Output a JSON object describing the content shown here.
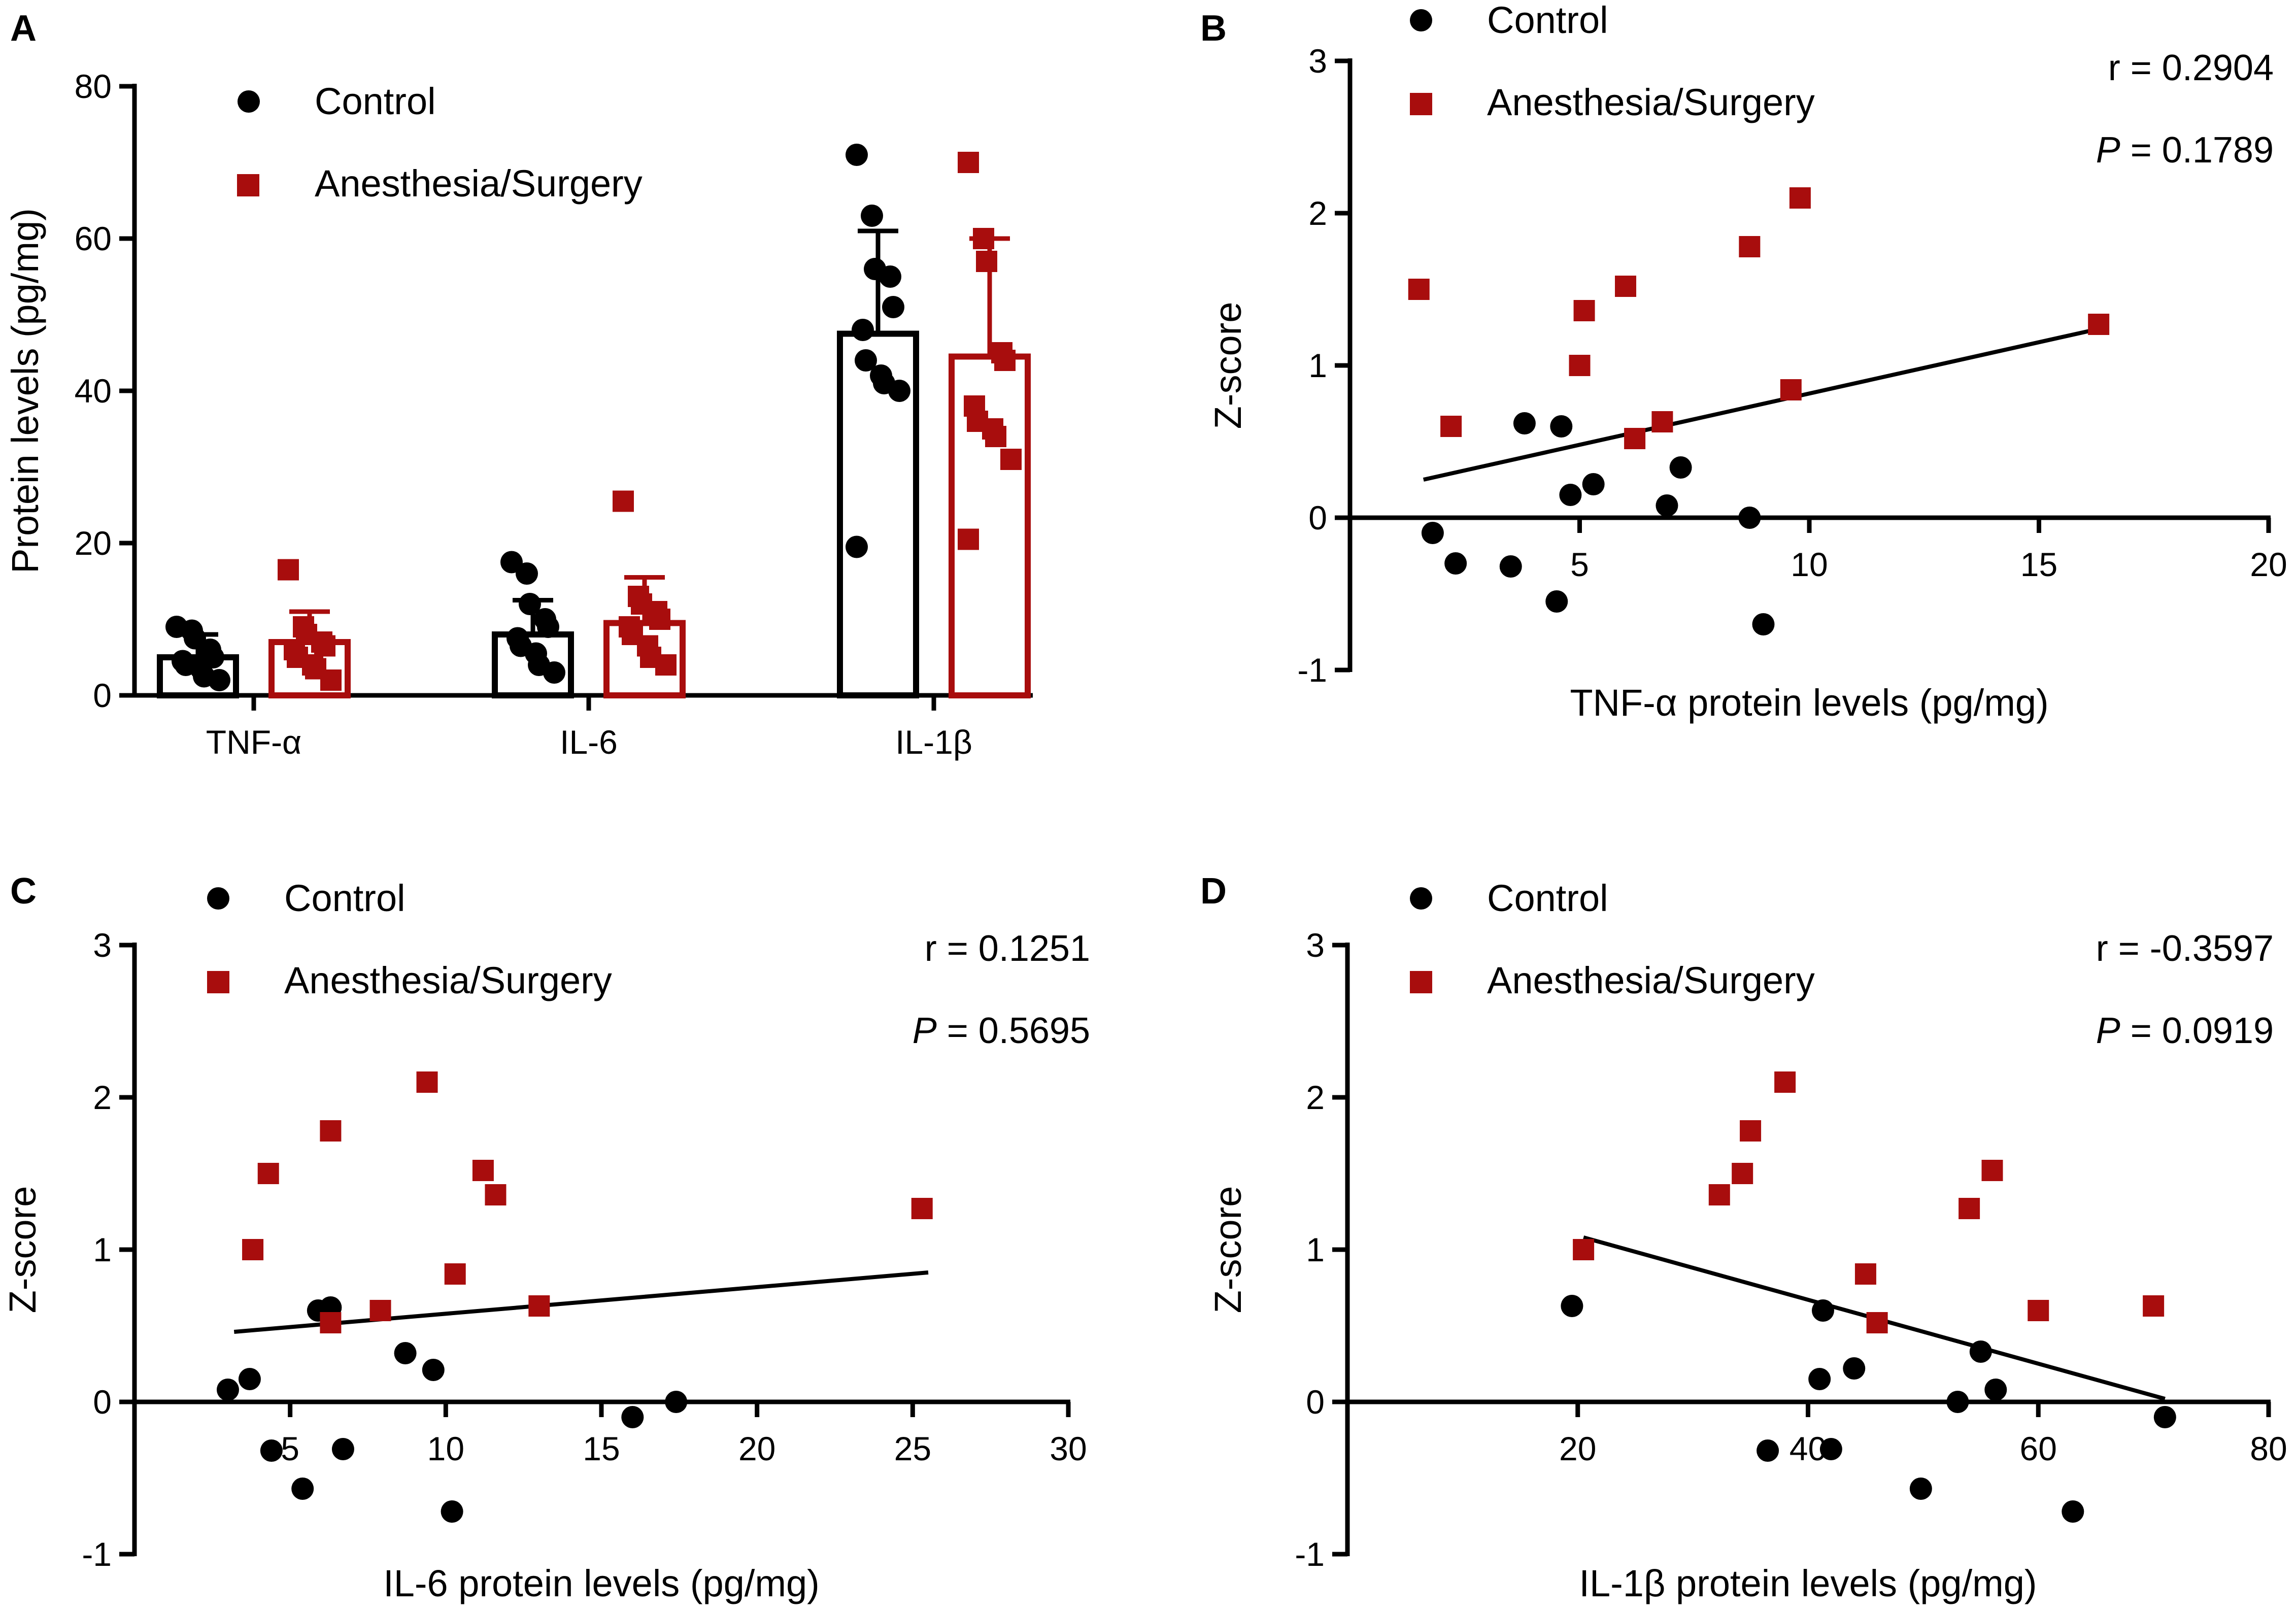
{
  "colors": {
    "control": "#000000",
    "surgery": "#A80D0D"
  },
  "panels": [
    {
      "id": "A",
      "label": "A"
    },
    {
      "id": "B",
      "label": "B"
    },
    {
      "id": "C",
      "label": "C"
    },
    {
      "id": "D",
      "label": "D"
    }
  ],
  "legend": {
    "control": "Control",
    "surgery": "Anesthesia/Surgery"
  },
  "chart_data": [
    {
      "panel": "A",
      "type": "bar",
      "ylabel": "Protein levels (pg/mg)",
      "ylim": [
        0,
        80
      ],
      "yticks": [
        0,
        20,
        40,
        60,
        80
      ],
      "categories": [
        "TNF-α",
        "IL-6",
        "IL-1β"
      ],
      "series": [
        {
          "name": "Control",
          "means": [
            5,
            8,
            47.5
          ],
          "sd": [
            3,
            4.5,
            13.5
          ],
          "points": [
            [
              9,
              8.5,
              7.5,
              6,
              5,
              4.5,
              4,
              3.5,
              2.5,
              2
            ],
            [
              17.5,
              16,
              12,
              10,
              9,
              7.5,
              6.5,
              5.5,
              4,
              3
            ],
            [
              71,
              63,
              56,
              55,
              51,
              48,
              44,
              42,
              41,
              40,
              19.5
            ]
          ]
        },
        {
          "name": "Anesthesia/Surgery",
          "means": [
            7,
            9.5,
            44.5
          ],
          "sd": [
            4,
            6,
            15.5
          ],
          "points": [
            [
              16.5,
              9,
              8,
              7,
              6.5,
              6,
              5,
              4,
              3.5,
              2
            ],
            [
              25.5,
              13,
              12,
              11,
              10,
              9,
              8,
              6.5,
              5,
              4
            ],
            [
              70,
              60,
              57,
              45,
              44,
              38,
              36,
              35,
              34,
              31,
              20.5
            ]
          ]
        }
      ]
    },
    {
      "panel": "B",
      "type": "scatter",
      "xlabel": "TNF-α protein levels (pg/mg)",
      "ylabel": "Z-score",
      "xlim": [
        0,
        20
      ],
      "ylim": [
        -1,
        3
      ],
      "xticks": [
        5,
        10,
        15,
        20
      ],
      "yticks": [
        -1,
        0,
        1,
        2,
        3
      ],
      "r_text": "r = 0.2904",
      "p_label": "P",
      "p_value": " = 0.1789",
      "control": [
        [
          1.8,
          -0.1
        ],
        [
          2.3,
          -0.3
        ],
        [
          3.5,
          -0.32
        ],
        [
          3.8,
          0.62
        ],
        [
          4.6,
          0.6
        ],
        [
          4.8,
          0.15
        ],
        [
          5.3,
          0.22
        ],
        [
          4.5,
          -0.55
        ],
        [
          6.9,
          0.08
        ],
        [
          7.2,
          0.33
        ],
        [
          8.7,
          0.0
        ],
        [
          9.0,
          -0.7
        ]
      ],
      "surgery": [
        [
          1.5,
          1.5
        ],
        [
          2.2,
          0.6
        ],
        [
          5.0,
          1.0
        ],
        [
          5.1,
          1.36
        ],
        [
          6.0,
          1.52
        ],
        [
          6.2,
          0.52
        ],
        [
          6.8,
          0.63
        ],
        [
          8.7,
          1.78
        ],
        [
          9.6,
          0.84
        ],
        [
          9.8,
          2.1
        ],
        [
          16.3,
          1.27
        ]
      ],
      "fit": [
        [
          1.6,
          0.25
        ],
        [
          16.3,
          1.24
        ]
      ]
    },
    {
      "panel": "C",
      "type": "scatter",
      "xlabel": "IL-6 protein levels (pg/mg)",
      "ylabel": "Z-score",
      "xlim": [
        0,
        30
      ],
      "ylim": [
        -1,
        3
      ],
      "xticks": [
        5,
        10,
        15,
        20,
        25,
        30
      ],
      "yticks": [
        -1,
        0,
        1,
        2,
        3
      ],
      "r_text": "r = 0.1251",
      "p_label": "P",
      "p_value": " = 0.5695",
      "control": [
        [
          3.0,
          0.08
        ],
        [
          3.7,
          0.15
        ],
        [
          4.4,
          -0.32
        ],
        [
          5.4,
          -0.57
        ],
        [
          5.9,
          0.6
        ],
        [
          6.3,
          0.62
        ],
        [
          6.7,
          -0.31
        ],
        [
          8.7,
          0.32
        ],
        [
          9.6,
          0.21
        ],
        [
          10.2,
          -0.72
        ],
        [
          16.0,
          -0.1
        ],
        [
          17.4,
          0.0
        ]
      ],
      "surgery": [
        [
          3.8,
          1.0
        ],
        [
          4.3,
          1.5
        ],
        [
          6.3,
          0.52
        ],
        [
          6.3,
          1.78
        ],
        [
          7.9,
          0.6
        ],
        [
          9.4,
          2.1
        ],
        [
          10.3,
          0.84
        ],
        [
          11.2,
          1.52
        ],
        [
          11.6,
          1.36
        ],
        [
          13.0,
          0.63
        ],
        [
          25.3,
          1.27
        ]
      ],
      "fit": [
        [
          3.2,
          0.46
        ],
        [
          25.5,
          0.85
        ]
      ]
    },
    {
      "panel": "D",
      "type": "scatter",
      "xlabel": "IL-1β protein levels (pg/mg)",
      "ylabel": "Z-score",
      "xlim": [
        0,
        80
      ],
      "ylim": [
        -1,
        3
      ],
      "xticks": [
        20,
        40,
        60,
        80
      ],
      "yticks": [
        -1,
        0,
        1,
        2,
        3
      ],
      "r_text": "r = -0.3597",
      "p_label": "P",
      "p_value": " = 0.0919",
      "control": [
        [
          19.5,
          0.63
        ],
        [
          36.5,
          -0.32
        ],
        [
          41.0,
          0.15
        ],
        [
          41.3,
          0.6
        ],
        [
          42.0,
          -0.31
        ],
        [
          44.0,
          0.22
        ],
        [
          49.8,
          -0.57
        ],
        [
          53.0,
          0.0
        ],
        [
          55.0,
          0.33
        ],
        [
          56.3,
          0.08
        ],
        [
          63.0,
          -0.72
        ],
        [
          71.0,
          -0.1
        ]
      ],
      "surgery": [
        [
          20.5,
          1.0
        ],
        [
          32.3,
          1.36
        ],
        [
          34.3,
          1.5
        ],
        [
          35.0,
          1.78
        ],
        [
          38.0,
          2.1
        ],
        [
          45.0,
          0.84
        ],
        [
          46.0,
          0.52
        ],
        [
          54.0,
          1.27
        ],
        [
          56.0,
          1.52
        ],
        [
          60.0,
          0.6
        ],
        [
          70.0,
          0.63
        ]
      ],
      "fit": [
        [
          20.5,
          1.08
        ],
        [
          71.0,
          0.02
        ]
      ]
    }
  ]
}
